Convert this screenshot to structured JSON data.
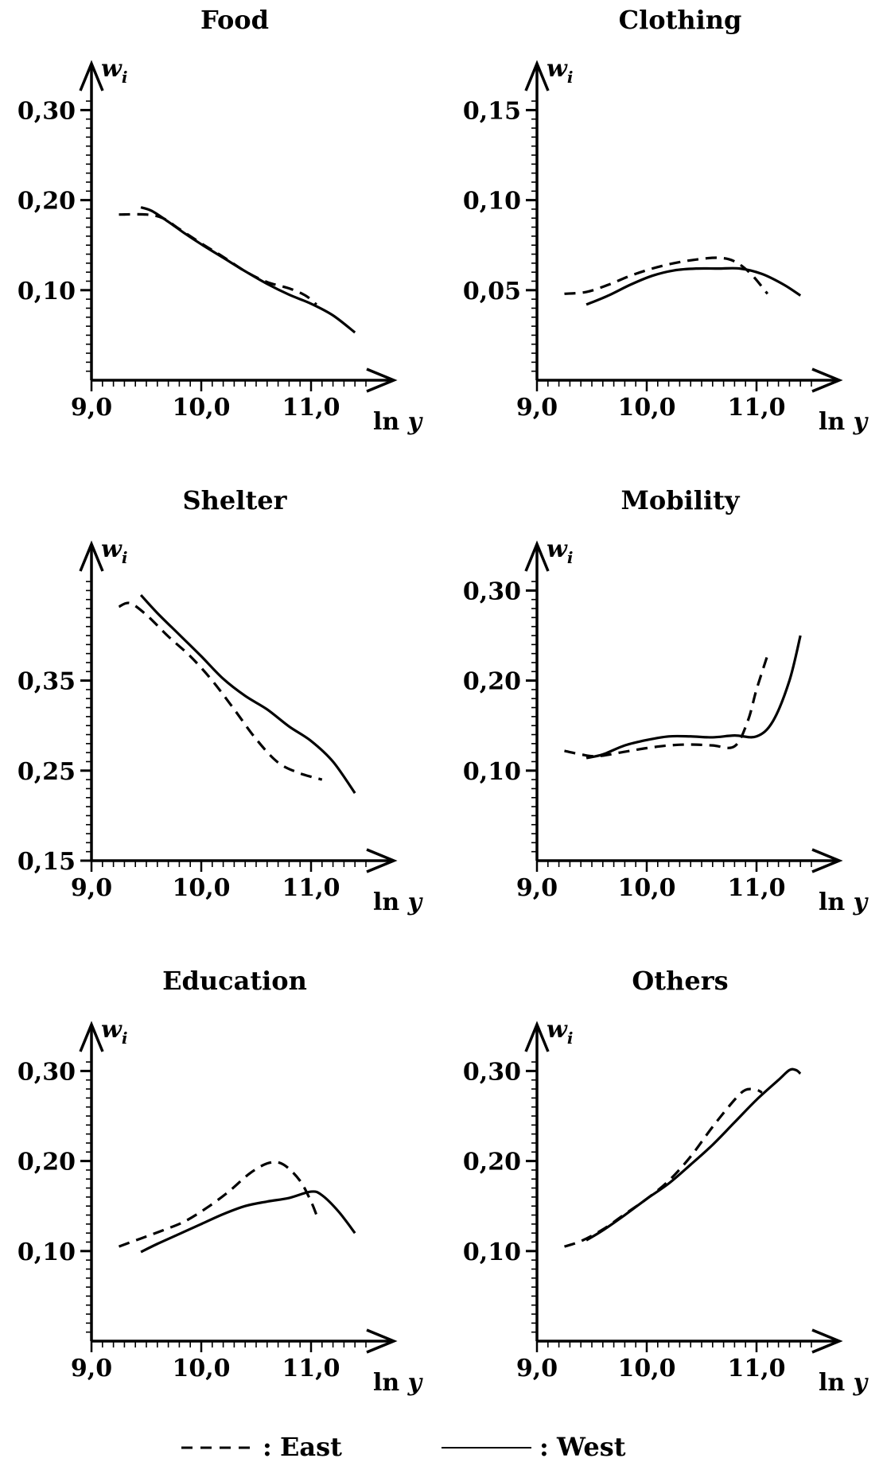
{
  "chart_data": [
    {
      "type": "line",
      "title": "Food",
      "xlabel": "ln y",
      "ylabel": "w_i",
      "xlim": [
        9.0,
        11.6
      ],
      "ylim": [
        0.0,
        0.33
      ],
      "xticks": [
        "9,0",
        "10,0",
        "11,0"
      ],
      "yticks": [
        "0,30",
        "0,20",
        "0,10"
      ],
      "series": [
        {
          "name": "East",
          "style": "dashed",
          "x": [
            9.25,
            9.5,
            9.65,
            9.8,
            10.0,
            10.2,
            10.4,
            10.6,
            10.8,
            10.95,
            11.05
          ],
          "y": [
            0.184,
            0.184,
            0.18,
            0.168,
            0.152,
            0.137,
            0.121,
            0.109,
            0.102,
            0.094,
            0.084
          ]
        },
        {
          "name": "West",
          "style": "solid",
          "x": [
            9.45,
            9.55,
            9.7,
            9.85,
            10.0,
            10.2,
            10.4,
            10.6,
            10.8,
            11.0,
            11.2,
            11.4
          ],
          "y": [
            0.192,
            0.188,
            0.176,
            0.163,
            0.151,
            0.136,
            0.121,
            0.107,
            0.095,
            0.085,
            0.072,
            0.053
          ]
        }
      ]
    },
    {
      "type": "line",
      "title": "Clothing",
      "xlabel": "ln y",
      "ylabel": "w_i",
      "xlim": [
        9.0,
        11.6
      ],
      "ylim": [
        0.0,
        0.165
      ],
      "xticks": [
        "9,0",
        "10,0",
        "11,0"
      ],
      "yticks": [
        "0,15",
        "0,10",
        "0,05"
      ],
      "series": [
        {
          "name": "East",
          "style": "dashed",
          "x": [
            9.25,
            9.45,
            9.65,
            9.85,
            10.05,
            10.25,
            10.45,
            10.65,
            10.8,
            10.95,
            11.1
          ],
          "y": [
            0.048,
            0.049,
            0.053,
            0.058,
            0.062,
            0.065,
            0.067,
            0.068,
            0.066,
            0.059,
            0.048
          ]
        },
        {
          "name": "West",
          "style": "solid",
          "x": [
            9.45,
            9.65,
            9.85,
            10.05,
            10.25,
            10.45,
            10.65,
            10.85,
            11.05,
            11.25,
            11.4
          ],
          "y": [
            0.042,
            0.047,
            0.053,
            0.058,
            0.061,
            0.062,
            0.062,
            0.062,
            0.059,
            0.053,
            0.047
          ]
        }
      ]
    },
    {
      "type": "line",
      "title": "Shelter",
      "xlabel": "ln y",
      "ylabel": "w_i",
      "xlim": [
        9.0,
        11.6
      ],
      "ylim": [
        0.15,
        0.46
      ],
      "xticks": [
        "9,0",
        "10,0",
        "11,0"
      ],
      "yticks": [
        "0,35",
        "0,25",
        "0,15"
      ],
      "series": [
        {
          "name": "East",
          "style": "dashed",
          "x": [
            9.25,
            9.35,
            9.5,
            9.7,
            9.9,
            10.1,
            10.3,
            10.5,
            10.7,
            10.9,
            11.1
          ],
          "y": [
            0.432,
            0.436,
            0.423,
            0.399,
            0.377,
            0.35,
            0.318,
            0.285,
            0.259,
            0.247,
            0.24
          ]
        },
        {
          "name": "West",
          "style": "solid",
          "x": [
            9.45,
            9.6,
            9.8,
            10.0,
            10.2,
            10.4,
            10.6,
            10.8,
            11.0,
            11.2,
            11.4
          ],
          "y": [
            0.445,
            0.425,
            0.401,
            0.377,
            0.352,
            0.333,
            0.318,
            0.299,
            0.283,
            0.26,
            0.225
          ]
        }
      ]
    },
    {
      "type": "line",
      "title": "Mobility",
      "xlabel": "ln y",
      "ylabel": "w_i",
      "xlim": [
        9.0,
        11.6
      ],
      "ylim": [
        0.0,
        0.33
      ],
      "xticks": [
        "9,0",
        "10,0",
        "11,0"
      ],
      "yticks": [
        "0,30",
        "0,20",
        "0,10"
      ],
      "series": [
        {
          "name": "East",
          "style": "dashed",
          "x": [
            9.25,
            9.4,
            9.55,
            9.8,
            10.0,
            10.2,
            10.4,
            10.6,
            10.8,
            10.92,
            11.0,
            11.1
          ],
          "y": [
            0.122,
            0.118,
            0.116,
            0.121,
            0.125,
            0.128,
            0.129,
            0.128,
            0.127,
            0.155,
            0.19,
            0.228
          ]
        },
        {
          "name": "West",
          "style": "solid",
          "x": [
            9.45,
            9.6,
            9.8,
            10.0,
            10.2,
            10.4,
            10.6,
            10.8,
            11.0,
            11.15,
            11.3,
            11.4
          ],
          "y": [
            0.114,
            0.118,
            0.128,
            0.134,
            0.138,
            0.138,
            0.137,
            0.139,
            0.138,
            0.155,
            0.2,
            0.25
          ]
        }
      ]
    },
    {
      "type": "line",
      "title": "Education",
      "xlabel": "ln y",
      "ylabel": "w_i",
      "xlim": [
        9.0,
        11.6
      ],
      "ylim": [
        0.0,
        0.33
      ],
      "xticks": [
        "9,0",
        "10,0",
        "11,0"
      ],
      "yticks": [
        "0,30",
        "0,20",
        "0,10"
      ],
      "series": [
        {
          "name": "East",
          "style": "dashed",
          "x": [
            9.25,
            9.45,
            9.65,
            9.85,
            10.05,
            10.25,
            10.45,
            10.62,
            10.75,
            10.9,
            11.0,
            11.05
          ],
          "y": [
            0.105,
            0.114,
            0.123,
            0.133,
            0.148,
            0.166,
            0.187,
            0.198,
            0.196,
            0.178,
            0.155,
            0.14
          ]
        },
        {
          "name": "West",
          "style": "solid",
          "x": [
            9.45,
            9.6,
            9.8,
            10.0,
            10.2,
            10.4,
            10.6,
            10.8,
            11.0,
            11.1,
            11.25,
            11.4
          ],
          "y": [
            0.099,
            0.108,
            0.119,
            0.13,
            0.141,
            0.15,
            0.155,
            0.159,
            0.166,
            0.162,
            0.144,
            0.12
          ]
        }
      ]
    },
    {
      "type": "line",
      "title": "Others",
      "xlabel": "ln y",
      "ylabel": "w_i",
      "xlim": [
        9.0,
        11.6
      ],
      "ylim": [
        0.0,
        0.33
      ],
      "xticks": [
        "9,0",
        "10,0",
        "11,0"
      ],
      "yticks": [
        "0,30",
        "0,20",
        "0,10"
      ],
      "series": [
        {
          "name": "East",
          "style": "dashed",
          "x": [
            9.25,
            9.4,
            9.6,
            9.8,
            10.0,
            10.2,
            10.4,
            10.6,
            10.8,
            10.9,
            11.0,
            11.05
          ],
          "y": [
            0.105,
            0.111,
            0.124,
            0.141,
            0.158,
            0.178,
            0.205,
            0.238,
            0.268,
            0.279,
            0.279,
            0.276
          ]
        },
        {
          "name": "West",
          "style": "solid",
          "x": [
            9.45,
            9.6,
            9.8,
            10.0,
            10.2,
            10.4,
            10.6,
            10.8,
            11.0,
            11.2,
            11.3,
            11.36,
            11.4
          ],
          "y": [
            0.112,
            0.123,
            0.14,
            0.158,
            0.175,
            0.196,
            0.218,
            0.243,
            0.268,
            0.29,
            0.301,
            0.301,
            0.297
          ]
        }
      ]
    }
  ],
  "legend": [
    {
      "marker": "- - - - :",
      "label": "East"
    },
    {
      "marker": ":",
      "label": "West"
    }
  ]
}
